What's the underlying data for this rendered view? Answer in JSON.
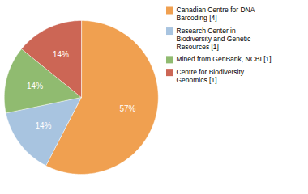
{
  "chart_data": {
    "type": "pie",
    "categories": [
      "Canadian Centre for DNA\nBarcoding [4]",
      "Research Center in\nBiodiversity and Genetic\nResources [1]",
      "Mined from GenBank, NCBI [1]",
      "Centre for Biodiversity\nGenomics [1]"
    ],
    "values": [
      57,
      14,
      14,
      14
    ],
    "value_labels": [
      "57%",
      "14%",
      "14%",
      "14%"
    ],
    "colors": [
      "#F0A050",
      "#A8C4E0",
      "#90BB70",
      "#CC6655"
    ],
    "data_labels": true,
    "legend": "right"
  }
}
